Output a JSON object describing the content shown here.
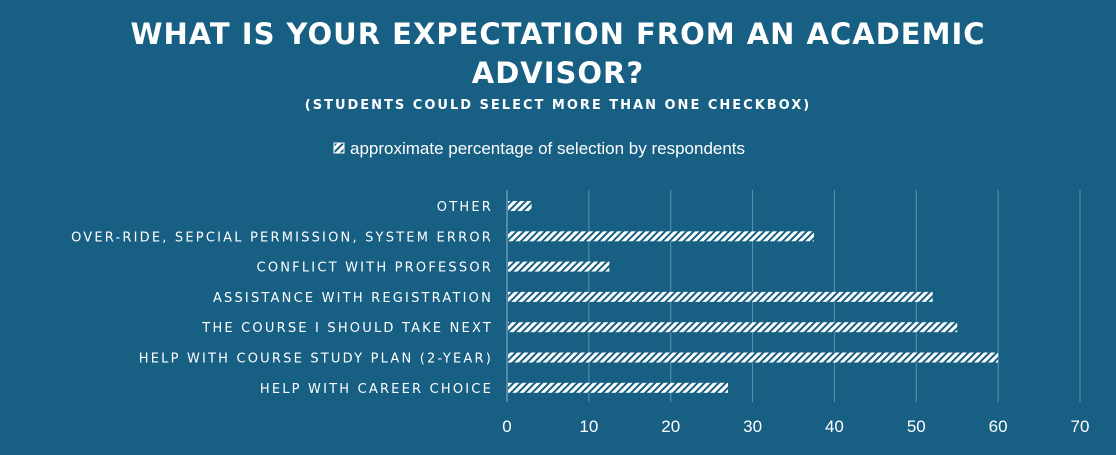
{
  "chart_data": {
    "type": "bar",
    "orientation": "horizontal",
    "title_lines": [
      "WHAT IS YOUR EXPECTATION FROM AN ACADEMIC",
      "ADVISOR?"
    ],
    "subtitle": "(STUDENTS COULD SELECT MORE THAN ONE CHECKBOX)",
    "legend_position": "top",
    "series": [
      {
        "name": "approximate percentage of selection by respondents",
        "values": [
          3,
          37.5,
          12.5,
          52,
          55,
          60,
          27
        ]
      }
    ],
    "categories": [
      "OTHER",
      "OVER-RIDE, SEPCIAL PERMISSION, SYSTEM ERROR",
      "CONFLICT WITH PROFESSOR",
      "ASSISTANCE WITH REGISTRATION",
      "THE COURSE I SHOULD TAKE NEXT",
      "HELP WITH COURSE STUDY PLAN (2-YEAR)",
      "HELP WITH CAREER CHOICE"
    ],
    "xlim": [
      0,
      70
    ],
    "xticks": [
      "0",
      "10",
      "20",
      "30",
      "40",
      "50",
      "60",
      "70"
    ],
    "grid": true,
    "colors": {
      "background": "#175f83",
      "bar": "#ffffff",
      "grid": "#5d93b0"
    }
  }
}
